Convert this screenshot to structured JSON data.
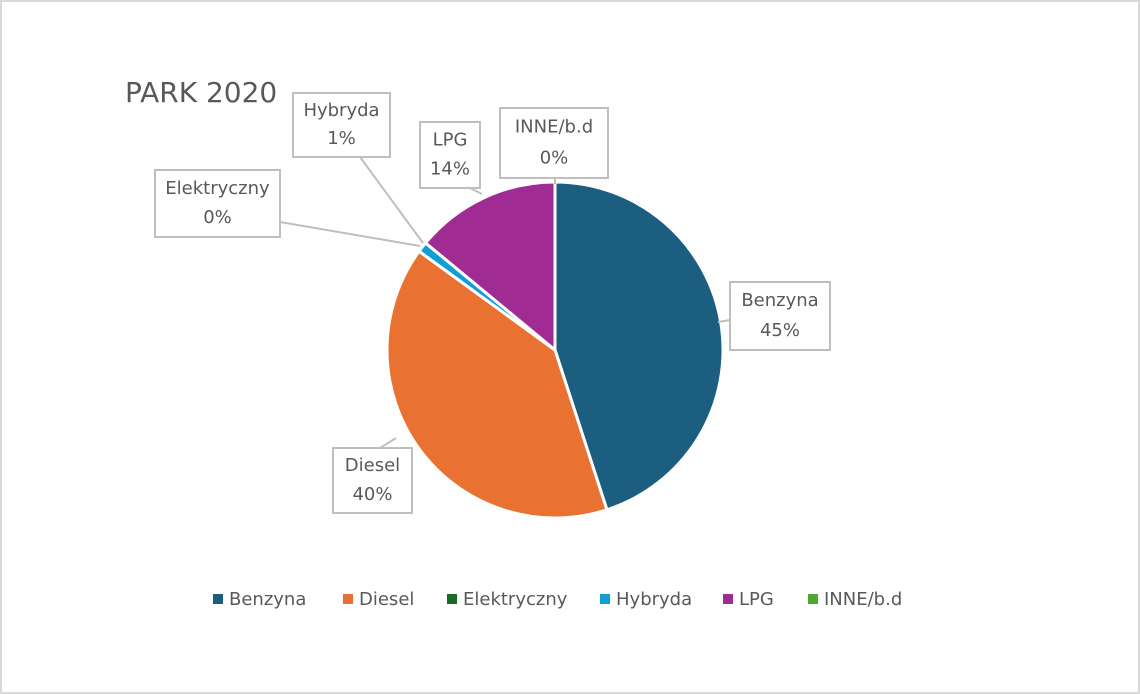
{
  "chart_data": {
    "type": "pie",
    "title": "PARK 2020",
    "categories": [
      "Benzyna",
      "Diesel",
      "Elektryczny",
      "Hybryda",
      "LPG",
      "INNE/b.d"
    ],
    "values": [
      45,
      40,
      0,
      1,
      14,
      0
    ],
    "value_labels": [
      "45%",
      "40%",
      "0%",
      "1%",
      "14%",
      "0%"
    ],
    "colors": [
      "#1b5e80",
      "#e97132",
      "#196b24",
      "#0f9ed5",
      "#a02b93",
      "#4ea72e"
    ],
    "legend": "bottom"
  }
}
